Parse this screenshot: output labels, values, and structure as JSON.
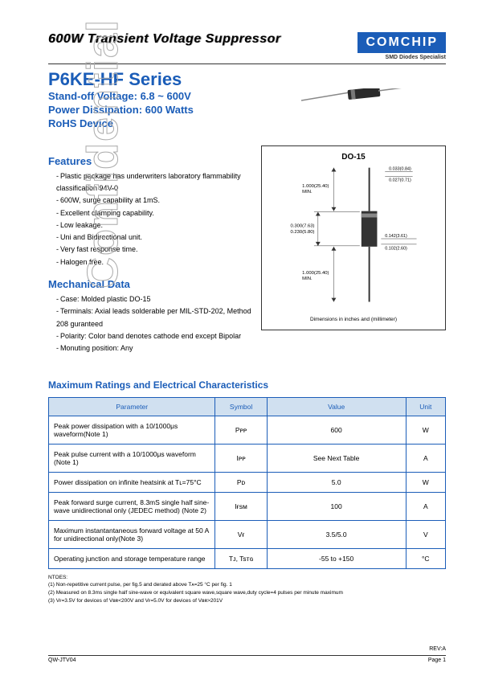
{
  "watermark": "Confidential",
  "header": {
    "title": "600W Transient Voltage Suppressor",
    "logo_text": "COMCHIP",
    "logo_sub": "SMD Diodes Specialist"
  },
  "series": {
    "title": "P6KE-HF Series",
    "line1": "Stand-off Voltage: 6.8 ~ 600V",
    "line2": "Power Dissipation: 600 Watts",
    "line3": "RoHS Device"
  },
  "features": {
    "heading": "Features",
    "items": [
      "Plastic package has underwriters laboratory flammability classification 94V-0",
      "600W, surge capability at 1mS.",
      "Excellent clamping capability.",
      "Low leakage.",
      "Uni and Bidirectional unit.",
      "Very fast response time.",
      "Halogen free."
    ]
  },
  "mechanical": {
    "heading": "Mechanical Data",
    "items": [
      "Case: Molded plastic DO-15",
      "Terminals: Axial leads solderable per MIL-STD-202, Method 208 guranteed",
      "Polarity: Color band denotes cathode end except Bipolar",
      "Monuting position: Any"
    ]
  },
  "diagram": {
    "title": "DO-15",
    "caption": "Dimensions in inches and (millimeter)",
    "labels": {
      "lead_len": "1.000(25.40)\nMIN.",
      "lead_dia_top": "0.033(0.84)",
      "lead_dia_bot": "0.027(0.71)",
      "body_len_top": "0.300(7.63)",
      "body_len_bot": "0.230(5.80)",
      "body_dia_top": "0.142(3.61)",
      "body_dia_bot": "0.102(2.60)"
    }
  },
  "diode_illustration": {
    "body_color": "#333333",
    "band_color": "#777777",
    "lead_color": "#888888"
  },
  "ratings": {
    "heading": "Maximum Ratings and Electrical Characteristics",
    "columns": [
      "Parameter",
      "Symbol",
      "Value",
      "Unit"
    ],
    "rows": [
      [
        "Peak power dissipation with a 10/1000μs waveform(Note 1)",
        "Pᴘᴘ",
        "600",
        "W"
      ],
      [
        "Peak pulse current  with a 10/1000μs waveform (Note 1)",
        "Iᴘᴘ",
        "See Next Table",
        "A"
      ],
      [
        "Power dissipation on infinite heatsink at Tʟ=75°C",
        "Pᴅ",
        "5.0",
        "W"
      ],
      [
        "Peak forward surge current, 8.3mS single half sine-wave unidirectional only (JEDEC method) (Note 2)",
        "Iғsᴍ",
        "100",
        "A"
      ],
      [
        "Maximum instantantaneous forward voltage at 50 A for unidirectional only(Note 3)",
        "Vғ",
        "3.5/5.0",
        "V"
      ],
      [
        "Operating junction and storage temperature range",
        "Tᴊ, Tsᴛɢ",
        "-55 to +150",
        "°C"
      ]
    ]
  },
  "notes": {
    "heading": "NTOES:",
    "items": [
      "(1) Non-repetitive current pulse, per fig.5 and derated above Tᴀ=25 °C per fig. 1",
      "(2) Measured on 8.3ms single half sine-wave or equivalent square wave,square wave,duty cycle=4 pulses per minute maximum",
      "(3) Vғ=3.5V for devices of Vʙʀ<200V and Vғ=5.0V for devices of Vʙʀ>201V"
    ]
  },
  "footer": {
    "left": "QW-JTV04",
    "right": "Page 1",
    "rev": "REV:A"
  },
  "colors": {
    "brand_blue": "#1b5db8",
    "header_bg": "#d0e0f0"
  }
}
